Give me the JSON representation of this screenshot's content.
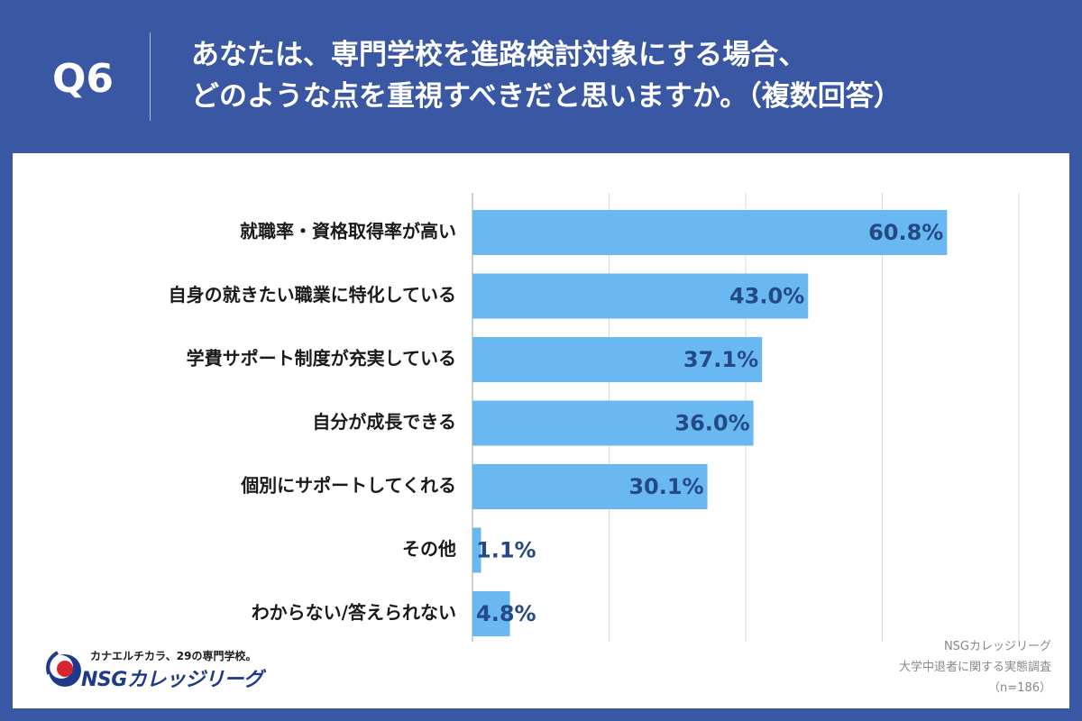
{
  "header": {
    "question_no": "Q6",
    "title_line1": "あなたは、専門学校を進路検討対象にする場合、",
    "title_line2": "どのような点を重視すべきだと思いますか。（複数回答）"
  },
  "chart_data": {
    "type": "bar",
    "orientation": "horizontal",
    "categories": [
      "就職率・資格取得率が高い",
      "自身の就きたい職業に特化している",
      "学費サポート制度が充実している",
      "自分が成長できる",
      "個別にサポートしてくれる",
      "その他",
      "わからない/答えられない"
    ],
    "values": [
      60.8,
      43.0,
      37.1,
      36.0,
      30.1,
      1.1,
      4.8
    ],
    "value_labels": [
      "60.8%",
      "43.0%",
      "37.1%",
      "36.0%",
      "30.1%",
      "1.1%",
      "4.8%"
    ],
    "unit": "%",
    "xlim": [
      0,
      70
    ],
    "gridline_step": 17.5,
    "grid": true,
    "colors": {
      "bar": "#6ab8f2",
      "value_text": "#244a86",
      "grid": "#d9d9d9",
      "axis": "#bfbfbf"
    }
  },
  "source": {
    "line1": "NSGカレッジリーグ",
    "line2": "大学中退者に関する実態調査",
    "line3": "（n=186）"
  },
  "logo": {
    "tagline": "カナエルチカラ、29の専門学校。",
    "name": "NSGカレッジリーグ",
    "colors": {
      "blue": "#1f3a8a",
      "red": "#d7262e"
    }
  },
  "colors": {
    "header_bg": "#3a57a3",
    "panel_bg": "#ffffff"
  }
}
